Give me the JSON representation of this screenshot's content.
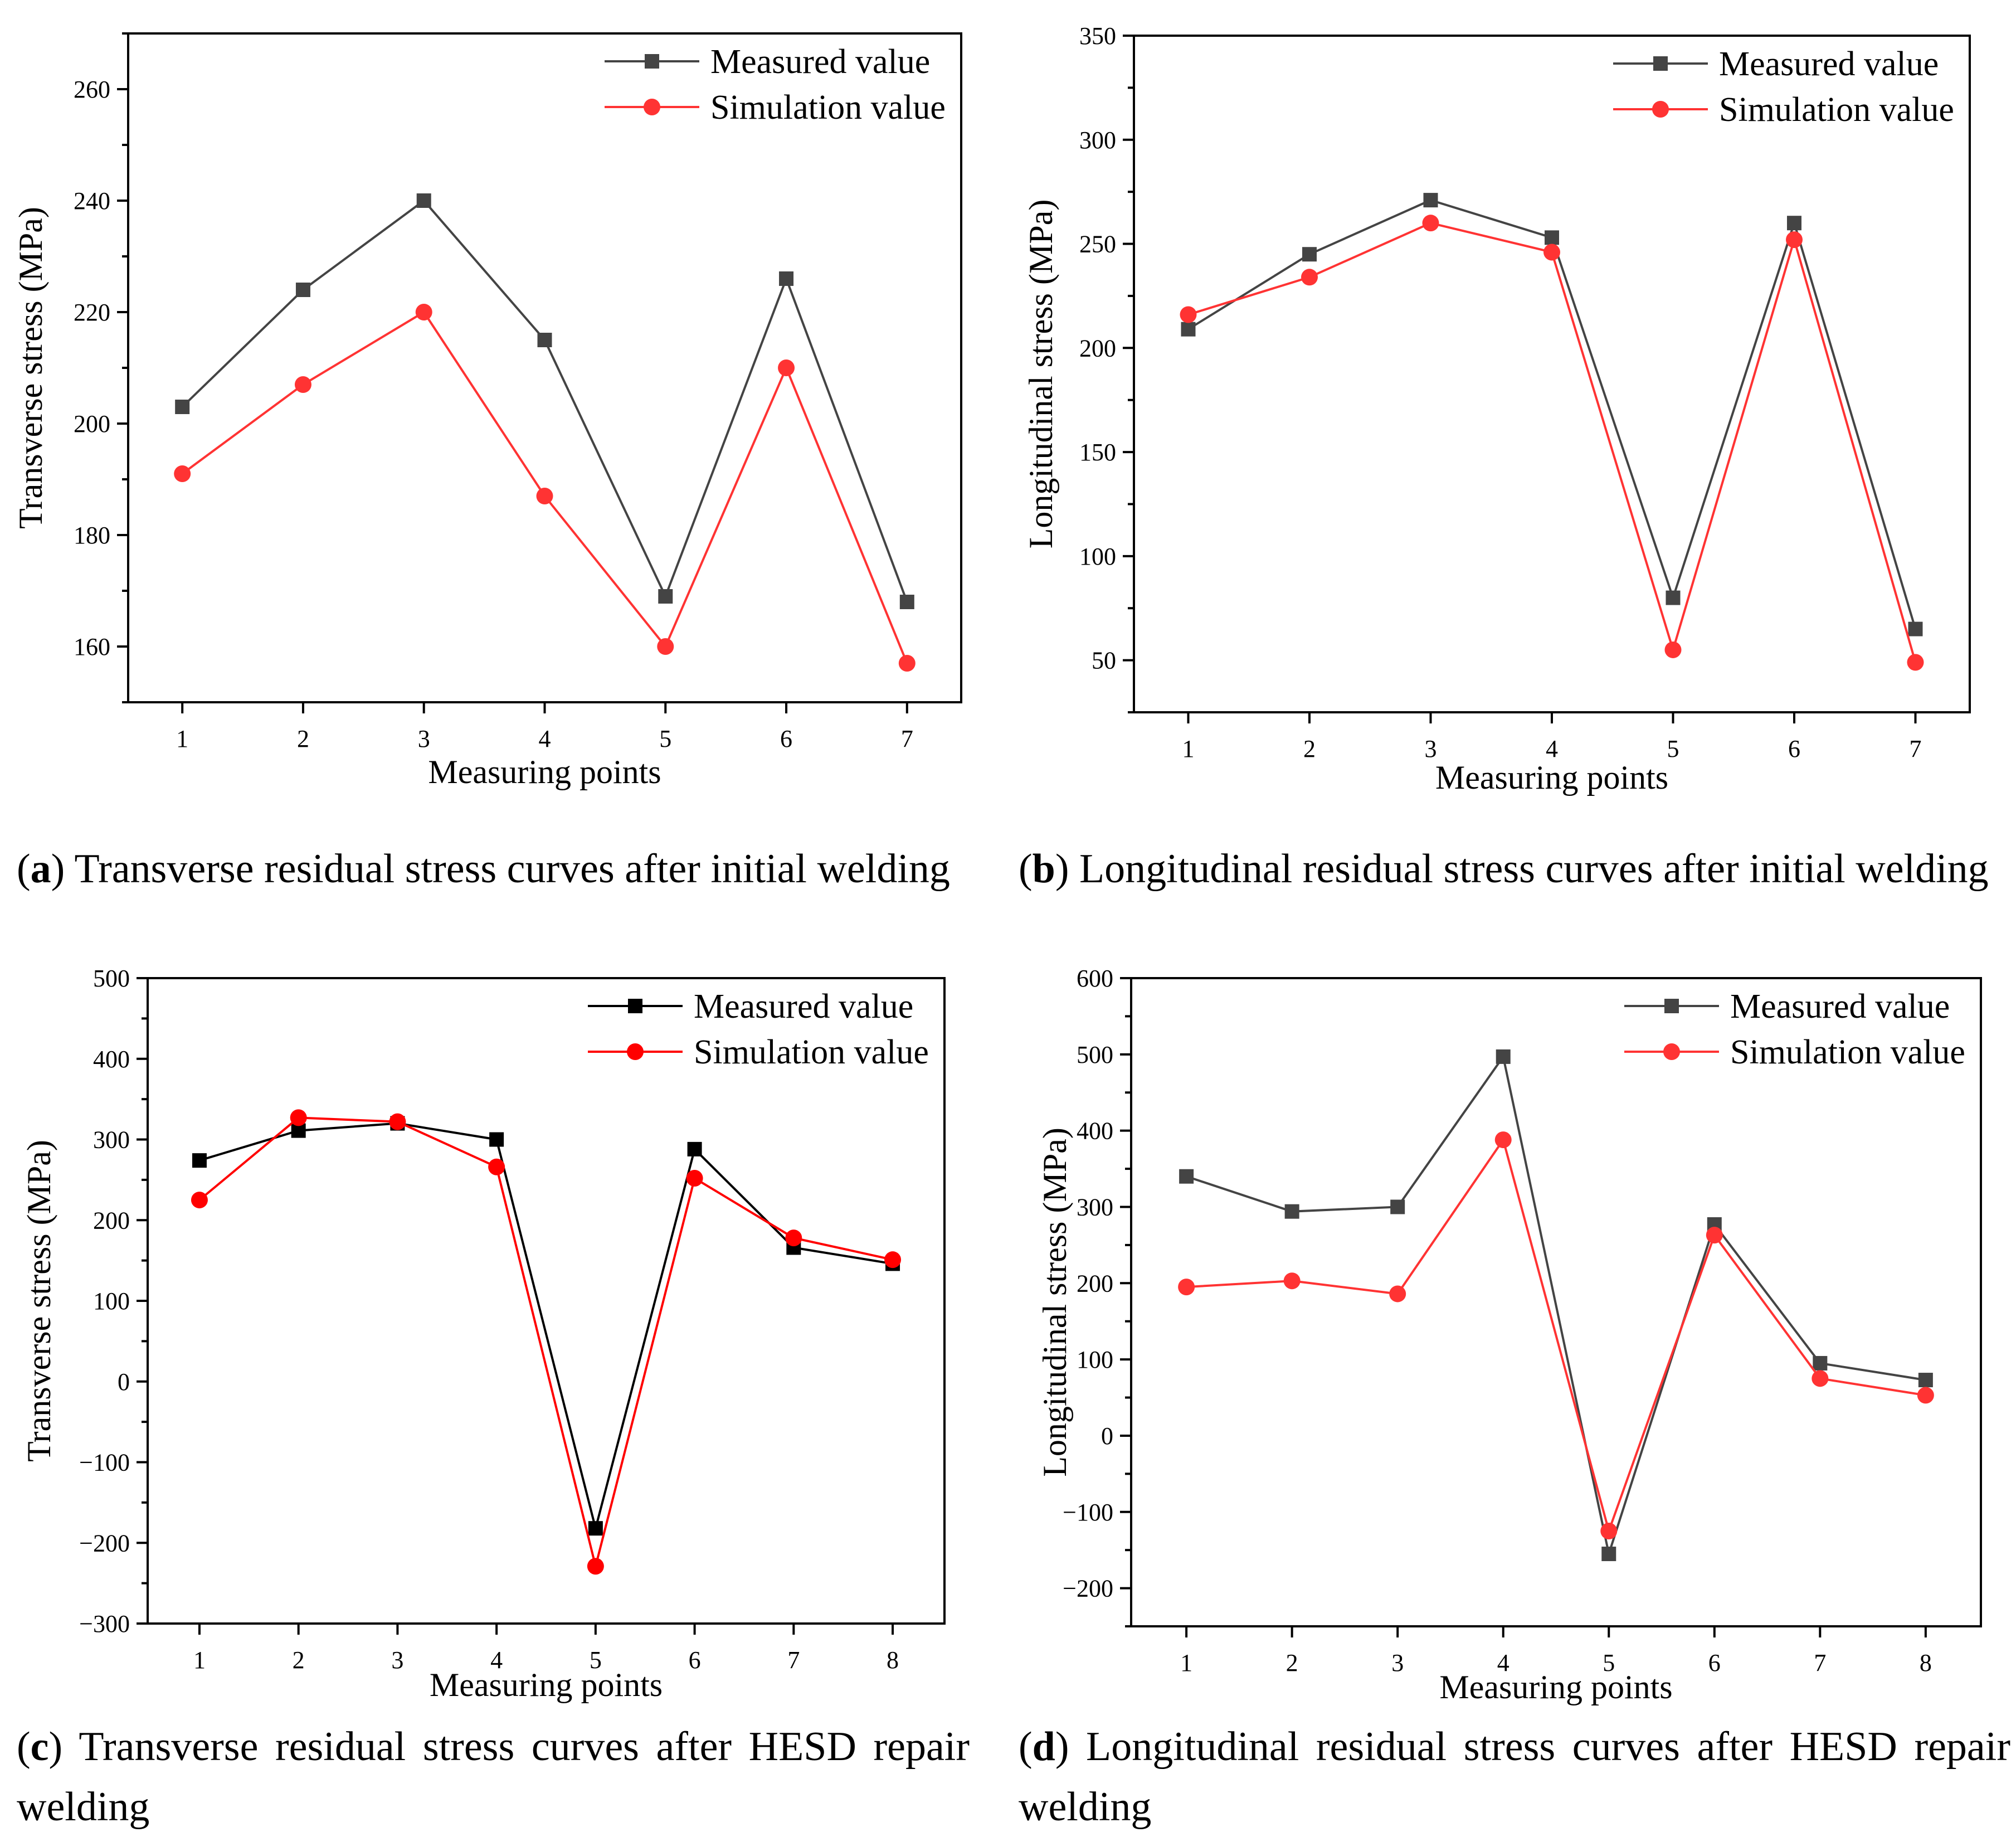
{
  "figure": {
    "panels": [
      {
        "id": "a",
        "caption_label": "a",
        "caption_text": "Transverse residual stress curves after initial welding",
        "chart_data": {
          "type": "line",
          "x": [
            1,
            2,
            3,
            4,
            5,
            6,
            7
          ],
          "xlabel": "Measuring points",
          "ylabel": "Transverse stress (MPa)",
          "ylim": [
            150,
            270
          ],
          "yticks": [
            160,
            180,
            200,
            220,
            240,
            260
          ],
          "series": [
            {
              "name": "Measured value",
              "color": "#444444",
              "marker": "square",
              "values": [
                203,
                224,
                240,
                215,
                169,
                226,
                168
              ]
            },
            {
              "name": "Simulation value",
              "color": "#ff3333",
              "marker": "circle",
              "values": [
                191,
                207,
                220,
                187,
                160,
                210,
                157
              ]
            }
          ],
          "legend": "top-right",
          "grid": false
        }
      },
      {
        "id": "b",
        "caption_label": "b",
        "caption_text": "Longitudinal residual stress curves after initial welding",
        "chart_data": {
          "type": "line",
          "x": [
            1,
            2,
            3,
            4,
            5,
            6,
            7
          ],
          "xlabel": "Measuring points",
          "ylabel": "Longitudinal stress (MPa)",
          "ylim": [
            25,
            350
          ],
          "yticks": [
            50,
            100,
            150,
            200,
            250,
            300,
            350
          ],
          "series": [
            {
              "name": "Measured value",
              "color": "#444444",
              "marker": "square",
              "values": [
                209,
                245,
                271,
                253,
                80,
                260,
                65
              ]
            },
            {
              "name": "Simulation value",
              "color": "#ff3333",
              "marker": "circle",
              "values": [
                216,
                234,
                260,
                246,
                55,
                252,
                49
              ]
            }
          ],
          "legend": "top-right",
          "grid": false
        }
      },
      {
        "id": "c",
        "caption_label": "c",
        "caption_text": "Transverse residual stress curves after HESD repair welding",
        "chart_data": {
          "type": "line",
          "x": [
            1,
            2,
            3,
            4,
            5,
            6,
            7,
            8
          ],
          "xlabel": "Measuring points",
          "ylabel": "Transverse stress (MPa)",
          "ylim": [
            -300,
            500
          ],
          "yticks": [
            -300,
            -200,
            -100,
            0,
            100,
            200,
            300,
            400,
            500
          ],
          "series": [
            {
              "name": "Measured value",
              "color": "#000000",
              "marker": "square",
              "values": [
                274,
                311,
                320,
                300,
                -182,
                288,
                166,
                146
              ]
            },
            {
              "name": "Simulation value",
              "color": "#ff0000",
              "marker": "circle",
              "values": [
                225,
                327,
                322,
                266,
                -229,
                252,
                178,
                151
              ]
            }
          ],
          "legend": "top-right",
          "grid": false
        }
      },
      {
        "id": "d",
        "caption_label": "d",
        "caption_text": "Longitudinal residual stress curves after HESD repair welding",
        "chart_data": {
          "type": "line",
          "x": [
            1,
            2,
            3,
            4,
            5,
            6,
            7,
            8
          ],
          "xlabel": "Measuring points",
          "ylabel": "Longitudinal stress (MPa)",
          "ylim": [
            -250,
            600
          ],
          "yticks": [
            -200,
            -100,
            0,
            100,
            200,
            300,
            400,
            500,
            600
          ],
          "series": [
            {
              "name": "Measured value",
              "color": "#444444",
              "marker": "square",
              "values": [
                340,
                294,
                300,
                497,
                -155,
                277,
                95,
                73
              ]
            },
            {
              "name": "Simulation value",
              "color": "#ff3333",
              "marker": "circle",
              "values": [
                195,
                203,
                186,
                388,
                -125,
                263,
                75,
                53
              ]
            }
          ],
          "legend": "top-right",
          "grid": false
        }
      }
    ]
  }
}
